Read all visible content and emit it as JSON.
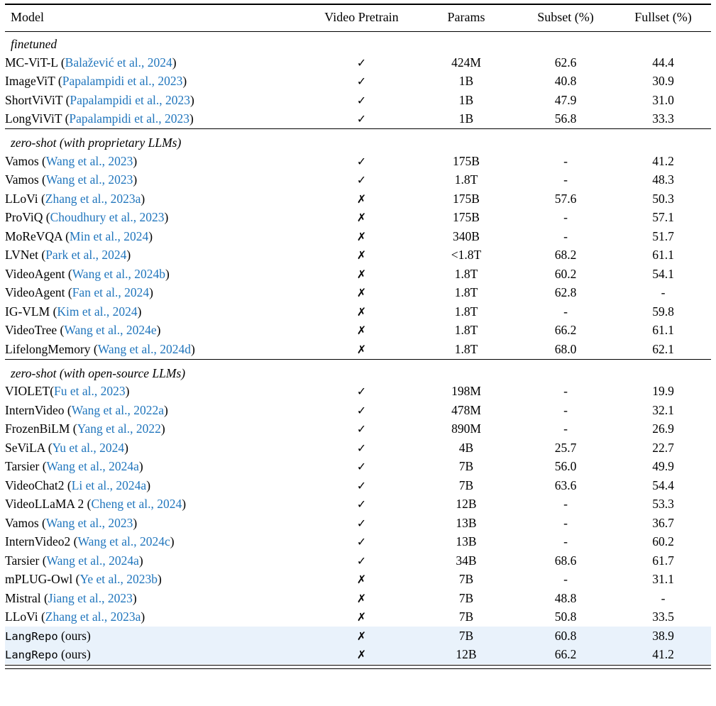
{
  "table": {
    "columns": {
      "model": "Model",
      "pretrain": "Video Pretrain",
      "params": "Params",
      "subset": "Subset (%)",
      "fullset": "Fullset (%)"
    },
    "icons": {
      "check": "✓",
      "cross": "✗"
    },
    "colors": {
      "citation": "#2176bd",
      "highlight": "#e9f2fb"
    },
    "sections": [
      {
        "label": "finetuned",
        "rows": [
          {
            "name": "MC-ViT-L",
            "cite": "Balažević et al., 2024",
            "pretrain": true,
            "params": "424M",
            "subset": "62.6",
            "fullset": "44.4"
          },
          {
            "name": "ImageViT",
            "cite": "Papalampidi et al., 2023",
            "pretrain": true,
            "params": "1B",
            "subset": "40.8",
            "fullset": "30.9"
          },
          {
            "name": "ShortViViT",
            "cite": "Papalampidi et al., 2023",
            "pretrain": true,
            "params": "1B",
            "subset": "47.9",
            "fullset": "31.0"
          },
          {
            "name": "LongViViT",
            "cite": "Papalampidi et al., 2023",
            "pretrain": true,
            "params": "1B",
            "subset": "56.8",
            "fullset": "33.3"
          }
        ]
      },
      {
        "label": "zero-shot (with proprietary LLMs)",
        "rows": [
          {
            "name": "Vamos",
            "cite": "Wang et al., 2023",
            "pretrain": true,
            "params": "175B",
            "subset": "-",
            "fullset": "41.2"
          },
          {
            "name": "Vamos",
            "cite": "Wang et al., 2023",
            "pretrain": true,
            "params": "1.8T",
            "subset": "-",
            "fullset": "48.3"
          },
          {
            "name": "LLoVi",
            "cite": "Zhang et al., 2023a",
            "pretrain": false,
            "params": "175B",
            "subset": "57.6",
            "fullset": "50.3"
          },
          {
            "name": "ProViQ",
            "cite": "Choudhury et al., 2023",
            "pretrain": false,
            "params": "175B",
            "subset": "-",
            "fullset": "57.1"
          },
          {
            "name": "MoReVQA",
            "cite": "Min et al., 2024",
            "pretrain": false,
            "params": "340B",
            "subset": "-",
            "fullset": "51.7"
          },
          {
            "name": "LVNet",
            "cite": "Park et al., 2024",
            "pretrain": false,
            "params": "<1.8T",
            "subset": "68.2",
            "fullset": "61.1"
          },
          {
            "name": "VideoAgent",
            "cite": "Wang et al., 2024b",
            "pretrain": false,
            "params": "1.8T",
            "subset": "60.2",
            "fullset": "54.1"
          },
          {
            "name": "VideoAgent",
            "cite": "Fan et al., 2024",
            "pretrain": false,
            "params": "1.8T",
            "subset": "62.8",
            "fullset": "-"
          },
          {
            "name": "IG-VLM",
            "cite": "Kim et al., 2024",
            "pretrain": false,
            "params": "1.8T",
            "subset": "-",
            "fullset": "59.8"
          },
          {
            "name": "VideoTree",
            "cite": "Wang et al., 2024e",
            "pretrain": false,
            "params": "1.8T",
            "subset": "66.2",
            "fullset": "61.1"
          },
          {
            "name": "LifelongMemory",
            "cite": "Wang et al., 2024d",
            "pretrain": false,
            "params": "1.8T",
            "subset": "68.0",
            "fullset": "62.1"
          }
        ]
      },
      {
        "label": "zero-shot (with open-source LLMs)",
        "rows": [
          {
            "name": "VIOLET",
            "nospace": true,
            "cite": "Fu et al., 2023",
            "pretrain": true,
            "params": "198M",
            "subset": "-",
            "fullset": "19.9"
          },
          {
            "name": "InternVideo",
            "cite": "Wang et al., 2022a",
            "pretrain": true,
            "params": "478M",
            "subset": "-",
            "fullset": "32.1"
          },
          {
            "name": "FrozenBiLM",
            "cite": "Yang et al., 2022",
            "pretrain": true,
            "params": "890M",
            "subset": "-",
            "fullset": "26.9"
          },
          {
            "name": "SeViLA",
            "cite": "Yu et al., 2024",
            "pretrain": true,
            "params": "4B",
            "subset": "25.7",
            "fullset": "22.7"
          },
          {
            "name": "Tarsier",
            "cite": "Wang et al., 2024a",
            "pretrain": true,
            "params": "7B",
            "subset": "56.0",
            "fullset": "49.9"
          },
          {
            "name": "VideoChat2",
            "cite": "Li et al., 2024a",
            "pretrain": true,
            "params": "7B",
            "subset": "63.6",
            "fullset": "54.4"
          },
          {
            "name": "VideoLLaMA 2",
            "cite": "Cheng et al., 2024",
            "pretrain": true,
            "params": "12B",
            "subset": "-",
            "fullset": "53.3"
          },
          {
            "name": "Vamos",
            "cite": "Wang et al., 2023",
            "pretrain": true,
            "params": "13B",
            "subset": "-",
            "fullset": "36.7"
          },
          {
            "name": "InternVideo2",
            "cite": "Wang et al., 2024c",
            "pretrain": true,
            "params": "13B",
            "subset": "-",
            "fullset": "60.2"
          },
          {
            "name": "Tarsier",
            "cite": "Wang et al., 2024a",
            "pretrain": true,
            "params": "34B",
            "subset": "68.6",
            "fullset": "61.7"
          },
          {
            "name": "mPLUG-Owl",
            "cite": "Ye et al., 2023b",
            "pretrain": false,
            "params": "7B",
            "subset": "-",
            "fullset": "31.1"
          },
          {
            "name": "Mistral",
            "cite": "Jiang et al., 2023",
            "pretrain": false,
            "params": "7B",
            "subset": "48.8",
            "fullset": "-"
          },
          {
            "name": "LLoVi",
            "cite": "Zhang et al., 2023a",
            "pretrain": false,
            "params": "7B",
            "subset": "50.8",
            "fullset": "33.5"
          },
          {
            "name": "LangRepo",
            "mono": true,
            "suffix": " (ours)",
            "pretrain": false,
            "params": "7B",
            "subset": "60.8",
            "fullset": "38.9",
            "highlight": true
          },
          {
            "name": "LangRepo",
            "mono": true,
            "suffix": " (ours)",
            "pretrain": false,
            "params": "12B",
            "subset": "66.2",
            "fullset": "41.2",
            "highlight": true
          }
        ]
      }
    ]
  }
}
